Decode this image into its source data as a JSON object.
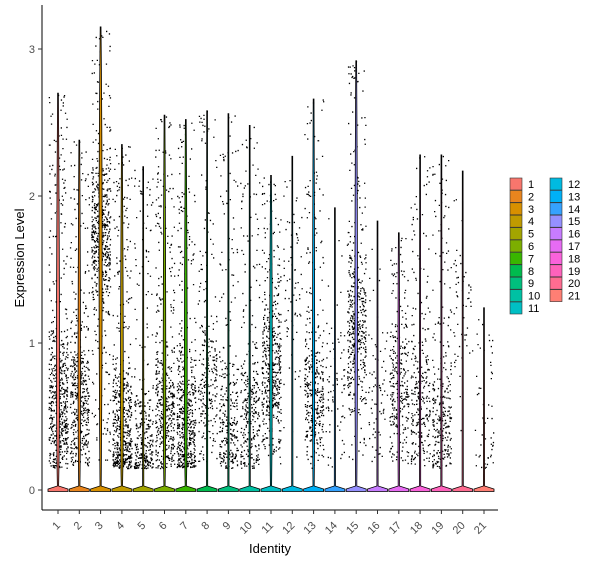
{
  "chart_data": {
    "type": "violin",
    "title": "",
    "xlabel": "Identity",
    "ylabel": "Expression Level",
    "ylim": [
      -0.15,
      3.3
    ],
    "yticks": [
      0,
      1,
      2,
      3
    ],
    "categories": [
      "1",
      "2",
      "3",
      "4",
      "5",
      "6",
      "7",
      "8",
      "9",
      "10",
      "11",
      "12",
      "13",
      "14",
      "15",
      "16",
      "17",
      "18",
      "19",
      "20",
      "21"
    ],
    "colors": [
      "#F8766D",
      "#E8851E",
      "#D89000",
      "#C09B00",
      "#A3A500",
      "#7CAE00",
      "#39B600",
      "#00BB4E",
      "#00BF7D",
      "#00C1A3",
      "#00BFC4",
      "#00BAE0",
      "#00B0F6",
      "#35A2FF",
      "#9590FF",
      "#C77CFF",
      "#E76BF3",
      "#FA62DB",
      "#FF62BC",
      "#FF6C91",
      "#FF7F74"
    ],
    "max_values": [
      2.7,
      2.38,
      3.15,
      2.35,
      2.2,
      2.55,
      2.52,
      2.58,
      2.56,
      2.48,
      2.14,
      2.27,
      2.66,
      1.92,
      2.92,
      1.83,
      1.75,
      2.28,
      2.28,
      2.17,
      1.24
    ],
    "fraction_expressing": [
      0.62,
      0.48,
      0.64,
      0.56,
      0.3,
      0.5,
      0.56,
      0.26,
      0.3,
      0.32,
      0.5,
      0.06,
      0.4,
      0.06,
      0.5,
      0.06,
      0.3,
      0.28,
      0.3,
      0.04,
      0.04
    ],
    "expressed_center": [
      0.55,
      0.6,
      1.75,
      0.4,
      0.3,
      0.55,
      0.45,
      0.7,
      0.45,
      0.5,
      0.8,
      1.5,
      0.65,
      0.7,
      1.1,
      0.6,
      0.7,
      0.6,
      0.45,
      1.2,
      0.4
    ],
    "legend": {
      "position": "right",
      "columns": 2
    },
    "grid": false
  }
}
